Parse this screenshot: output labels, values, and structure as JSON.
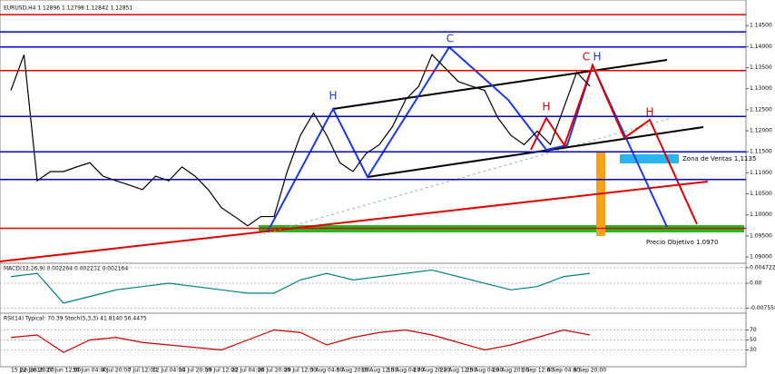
{
  "chart_data": [
    {
      "type": "line",
      "title": "EURUSD,H4 1.12896 1.12798 1.12842 1.12851",
      "categories": [
        "15 Jun 2016",
        null,
        "22 Jun 20:00",
        null,
        "27 Jun 12:00",
        null,
        "30 Jun 04:00",
        null,
        "4 Jul 20:00",
        null,
        "7 Jul 12:00",
        null,
        "12 Jul 04:00",
        null,
        "14 Jul 20:00",
        null,
        "19 Jul 12:00",
        null,
        "22 Jul 04:00",
        null,
        "26 Jul 20:00",
        null,
        "29 Jul 12:00",
        null,
        "3 Aug 04:00",
        null,
        "5 Aug 20:00",
        null,
        "10 Aug 12:00",
        null,
        "15 Aug 04:00",
        null,
        "17 Aug 20:00",
        null,
        "22 Aug 12:00",
        null,
        "25 Aug 04:00",
        null,
        "29 Aug 20:00",
        null,
        "1 Sep 12:00",
        null,
        "6 Sep 04:00",
        null,
        "8 Sep 20:00"
      ],
      "values": [
        1.1296,
        1.1381,
        1.1081,
        1.1103,
        1.1103,
        1.1114,
        1.1124,
        1.1092,
        1.1081,
        1.1071,
        1.106,
        1.1092,
        1.1081,
        1.1114,
        1.1092,
        1.106,
        1.1017,
        1.0996,
        1.0974,
        1.0996,
        1.0996,
        1.1103,
        1.1189,
        1.1242,
        1.1189,
        1.1124,
        1.1103,
        1.1146,
        1.1167,
        1.121,
        1.1274,
        1.1306,
        1.1381,
        1.1349,
        1.1317,
        1.1306,
        1.1296,
        1.1231,
        1.1189,
        1.1167,
        1.1199,
        1.1167,
        1.1253,
        1.1339,
        1.1306
      ],
      "color": "#000000",
      "ylim": [
        1.0885,
        1.15
      ],
      "yticks": [
        {
          "value": 1.09,
          "label": "1.09000"
        },
        {
          "value": 1.095,
          "label": "1.09500"
        },
        {
          "value": 1.1,
          "label": "1.10000"
        },
        {
          "value": 1.105,
          "label": "1.10500"
        },
        {
          "value": 1.11,
          "label": "1.11000"
        },
        {
          "value": 1.115,
          "label": "1.11500"
        },
        {
          "value": 1.12,
          "label": "1.12000"
        },
        {
          "value": 1.125,
          "label": "1.12500"
        },
        {
          "value": 1.13,
          "label": "1.13000"
        },
        {
          "value": 1.135,
          "label": "1.13500"
        },
        {
          "value": 1.14,
          "label": "1.14000"
        },
        {
          "value": 1.145,
          "label": "1.14500"
        }
      ],
      "levels": [
        {
          "value": 1.1476,
          "color": "#e00000"
        },
        {
          "value": 1.1435,
          "color": "#0000cc"
        },
        {
          "value": 1.1399,
          "color": "#0000cc"
        },
        {
          "value": 1.1343,
          "color": "#e00000"
        },
        {
          "value": 1.1234,
          "color": "#0000cc"
        },
        {
          "value": 1.115,
          "color": "#0000cc"
        },
        {
          "value": 1.1084,
          "color": "#0000cc"
        },
        {
          "value": 1.0968,
          "color": "#e00000"
        }
      ],
      "annotations": {
        "c1": "C",
        "c2": "C",
        "h1": "H",
        "h2": "H",
        "h3": "H",
        "h4": "H",
        "zone": "Zona de Ventas 1,1135",
        "target": "Precio Objetivo 1.0970"
      }
    },
    {
      "type": "line",
      "title": "MACD(12,26,9) 0.002264 0.002232 0.002164",
      "values": [
        0.002,
        0.003,
        -0.006,
        -0.004,
        -0.002,
        -0.001,
        0.0,
        -0.001,
        -0.002,
        -0.003,
        -0.003,
        0.001,
        0.003,
        0.001,
        0.002,
        0.003,
        0.004,
        0.002,
        0.0,
        -0.002,
        -0.001,
        0.002,
        0.003
      ],
      "color": "#008080",
      "ylim": [
        -0.0085,
        0.0055
      ],
      "yticks": [
        0.004722,
        {
          "value": 0,
          "label": "0.00"
        },
        -0.007558
      ]
    },
    {
      "type": "line",
      "title": "RSI(14) Typical: 70.39 Stoch(5,3,3) 41.8140 56.4475",
      "values": [
        55,
        60,
        25,
        50,
        55,
        45,
        40,
        35,
        30,
        50,
        70,
        65,
        40,
        55,
        65,
        70,
        60,
        45,
        30,
        40,
        55,
        70,
        60
      ],
      "color": "#cc0000",
      "ylim": [
        0,
        100
      ],
      "yticks": [
        70,
        50,
        30
      ]
    }
  ]
}
